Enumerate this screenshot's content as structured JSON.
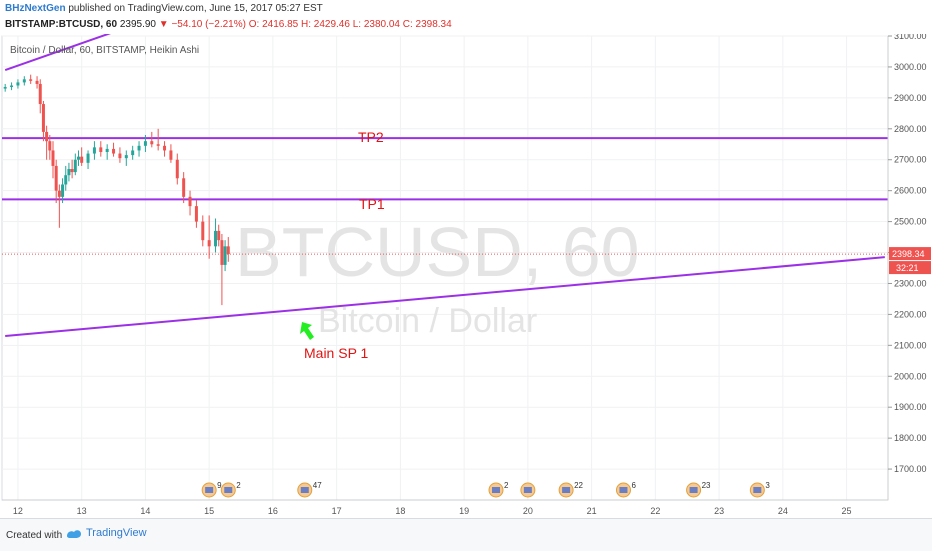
{
  "header": {
    "author": "BHzNextGen",
    "published": "published on TradingView.com, June 15, 2017 05:27 EST",
    "symbol": "BITSTAMP:BTCUSD, 60",
    "last": "2395.90",
    "change": "−54.10 (−2.21%)",
    "ohlc": "O: 2416.85 H: 2429.46 L: 2380.04 C: 2398.34"
  },
  "series_label": "Bitcoin / Dollar, 60, BITSTAMP, Heikin Ashi",
  "watermark": {
    "big": "BTCUSD, 60",
    "small": "Bitcoin / Dollar"
  },
  "price_tag": "2398.34",
  "countdown_tag": "32:21",
  "annotations": {
    "tp2": "TP2",
    "tp1": "TP1",
    "sp": "Main SP 1"
  },
  "footer": {
    "created": "Created with",
    "brand": "TradingView"
  },
  "colors": {
    "up": "#26a69a",
    "down": "#ef5350",
    "line": "#9b30e6",
    "label": "#e01414",
    "arrow": "#22ee22"
  },
  "events": [
    {
      "date": 15,
      "label": "9"
    },
    {
      "date": 15.3,
      "label": "2"
    },
    {
      "date": 16.5,
      "label": "47"
    },
    {
      "date": 19.5,
      "label": "2"
    },
    {
      "date": 20,
      "label": ""
    },
    {
      "date": 20.6,
      "label": "22"
    },
    {
      "date": 21.5,
      "label": "6"
    },
    {
      "date": 22.6,
      "label": "23"
    },
    {
      "date": 23.6,
      "label": "3"
    }
  ],
  "chart_data": {
    "type": "candlestick",
    "title": "",
    "xlabel": "",
    "ylabel": "",
    "ylim": [
      1600,
      3100
    ],
    "xlim": [
      11.75,
      25.65
    ],
    "x_ticks": [
      12,
      13,
      14,
      15,
      16,
      17,
      18,
      19,
      20,
      21,
      22,
      23,
      24,
      25
    ],
    "y_ticks": [
      1700,
      1800,
      1900,
      2000,
      2100,
      2200,
      2300,
      2400,
      2500,
      2600,
      2700,
      2800,
      2900,
      3000,
      3100
    ],
    "lines": [
      {
        "label": "TP2",
        "type": "horizontal",
        "y": 2770
      },
      {
        "label": "TP1",
        "type": "horizontal",
        "y": 2572
      },
      {
        "label": "Main SP 1",
        "type": "trend",
        "points": [
          [
            11.8,
            2130
          ],
          [
            25.6,
            2385
          ]
        ]
      },
      {
        "label": "",
        "type": "trend",
        "points": [
          [
            11.8,
            2990
          ],
          [
            13.6,
            3120
          ]
        ]
      }
    ],
    "candles": [
      {
        "x": 11.8,
        "o": 2930,
        "h": 2945,
        "l": 2920,
        "c": 2935
      },
      {
        "x": 11.9,
        "o": 2935,
        "h": 2950,
        "l": 2925,
        "c": 2940
      },
      {
        "x": 12.0,
        "o": 2940,
        "h": 2960,
        "l": 2930,
        "c": 2950
      },
      {
        "x": 12.1,
        "o": 2950,
        "h": 2970,
        "l": 2940,
        "c": 2960
      },
      {
        "x": 12.2,
        "o": 2960,
        "h": 2975,
        "l": 2945,
        "c": 2955
      },
      {
        "x": 12.3,
        "o": 2955,
        "h": 2970,
        "l": 2930,
        "c": 2945
      },
      {
        "x": 12.35,
        "o": 2945,
        "h": 2960,
        "l": 2850,
        "c": 2880
      },
      {
        "x": 12.4,
        "o": 2880,
        "h": 2890,
        "l": 2760,
        "c": 2790
      },
      {
        "x": 12.45,
        "o": 2790,
        "h": 2810,
        "l": 2700,
        "c": 2760
      },
      {
        "x": 12.5,
        "o": 2760,
        "h": 2780,
        "l": 2700,
        "c": 2730
      },
      {
        "x": 12.55,
        "o": 2730,
        "h": 2760,
        "l": 2640,
        "c": 2680
      },
      {
        "x": 12.6,
        "o": 2680,
        "h": 2700,
        "l": 2560,
        "c": 2600
      },
      {
        "x": 12.65,
        "o": 2600,
        "h": 2620,
        "l": 2480,
        "c": 2580
      },
      {
        "x": 12.7,
        "o": 2580,
        "h": 2640,
        "l": 2560,
        "c": 2620
      },
      {
        "x": 12.75,
        "o": 2620,
        "h": 2680,
        "l": 2600,
        "c": 2650
      },
      {
        "x": 12.8,
        "o": 2650,
        "h": 2690,
        "l": 2630,
        "c": 2670
      },
      {
        "x": 12.85,
        "o": 2670,
        "h": 2700,
        "l": 2640,
        "c": 2660
      },
      {
        "x": 12.9,
        "o": 2660,
        "h": 2720,
        "l": 2650,
        "c": 2700
      },
      {
        "x": 12.95,
        "o": 2700,
        "h": 2730,
        "l": 2680,
        "c": 2710
      },
      {
        "x": 13.0,
        "o": 2710,
        "h": 2740,
        "l": 2680,
        "c": 2690
      },
      {
        "x": 13.1,
        "o": 2690,
        "h": 2730,
        "l": 2670,
        "c": 2720
      },
      {
        "x": 13.2,
        "o": 2720,
        "h": 2760,
        "l": 2700,
        "c": 2740
      },
      {
        "x": 13.3,
        "o": 2740,
        "h": 2760,
        "l": 2710,
        "c": 2725
      },
      {
        "x": 13.4,
        "o": 2725,
        "h": 2750,
        "l": 2700,
        "c": 2735
      },
      {
        "x": 13.5,
        "o": 2735,
        "h": 2755,
        "l": 2710,
        "c": 2720
      },
      {
        "x": 13.6,
        "o": 2720,
        "h": 2740,
        "l": 2690,
        "c": 2705
      },
      {
        "x": 13.7,
        "o": 2705,
        "h": 2730,
        "l": 2680,
        "c": 2715
      },
      {
        "x": 13.8,
        "o": 2715,
        "h": 2745,
        "l": 2700,
        "c": 2730
      },
      {
        "x": 13.9,
        "o": 2730,
        "h": 2760,
        "l": 2710,
        "c": 2745
      },
      {
        "x": 14.0,
        "o": 2745,
        "h": 2780,
        "l": 2725,
        "c": 2760
      },
      {
        "x": 14.1,
        "o": 2760,
        "h": 2790,
        "l": 2740,
        "c": 2750
      },
      {
        "x": 14.2,
        "o": 2750,
        "h": 2800,
        "l": 2730,
        "c": 2745
      },
      {
        "x": 14.3,
        "o": 2745,
        "h": 2760,
        "l": 2710,
        "c": 2730
      },
      {
        "x": 14.4,
        "o": 2730,
        "h": 2750,
        "l": 2690,
        "c": 2700
      },
      {
        "x": 14.5,
        "o": 2700,
        "h": 2720,
        "l": 2620,
        "c": 2640
      },
      {
        "x": 14.6,
        "o": 2640,
        "h": 2660,
        "l": 2560,
        "c": 2580
      },
      {
        "x": 14.7,
        "o": 2580,
        "h": 2600,
        "l": 2520,
        "c": 2550
      },
      {
        "x": 14.8,
        "o": 2550,
        "h": 2570,
        "l": 2480,
        "c": 2500
      },
      {
        "x": 14.9,
        "o": 2500,
        "h": 2520,
        "l": 2420,
        "c": 2440
      },
      {
        "x": 15.0,
        "o": 2440,
        "h": 2520,
        "l": 2380,
        "c": 2420
      },
      {
        "x": 15.1,
        "o": 2420,
        "h": 2510,
        "l": 2400,
        "c": 2470
      },
      {
        "x": 15.15,
        "o": 2470,
        "h": 2490,
        "l": 2420,
        "c": 2440
      },
      {
        "x": 15.2,
        "o": 2440,
        "h": 2460,
        "l": 2230,
        "c": 2360
      },
      {
        "x": 15.25,
        "o": 2360,
        "h": 2440,
        "l": 2340,
        "c": 2420
      },
      {
        "x": 15.3,
        "o": 2420,
        "h": 2450,
        "l": 2370,
        "c": 2395
      }
    ]
  }
}
